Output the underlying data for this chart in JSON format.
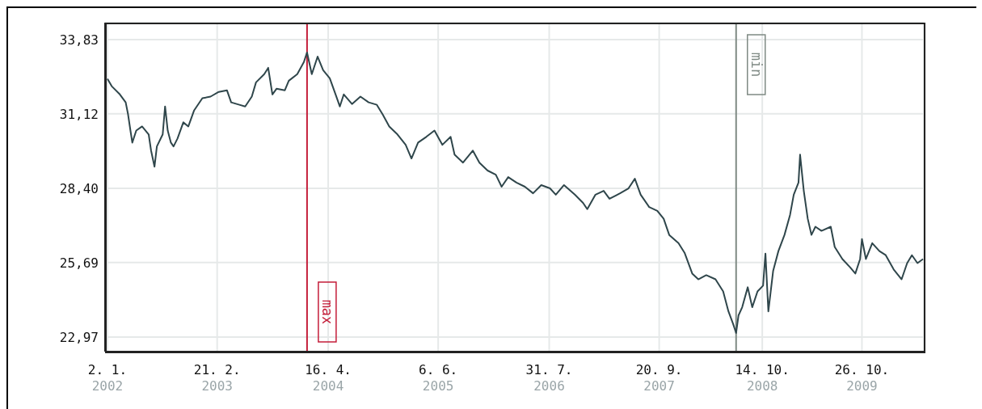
{
  "chart_data": {
    "type": "line",
    "grid": true,
    "marker": "none",
    "line_style": "solid",
    "xlim": [
      "2001-12-24",
      "2010-06-17"
    ],
    "xticks": [
      {
        "value": "2002-01-02",
        "label": "2. 1.\n2002"
      },
      {
        "value": "2003-02-21",
        "label": "21. 2.\n2003"
      },
      {
        "value": "2004-04-16",
        "label": "16. 4.\n2004"
      },
      {
        "value": "2005-06-06",
        "label": "6. 6.\n2005"
      },
      {
        "value": "2006-07-31",
        "label": "31. 7.\n2006"
      },
      {
        "value": "2007-09-20",
        "label": "20. 9.\n2007"
      },
      {
        "value": "2008-10-14",
        "label": "14. 10.\n2008"
      },
      {
        "value": "2009-10-26",
        "label": "26. 10.\n2009"
      }
    ],
    "ylim": [
      22.44,
      34.45
    ],
    "yticks": [
      {
        "value": 22.97,
        "label": "22,97"
      },
      {
        "value": 25.69,
        "label": "25,69"
      },
      {
        "value": 28.4,
        "label": "28,40"
      },
      {
        "value": 31.12,
        "label": "31,12"
      },
      {
        "value": 33.83,
        "label": "33,83"
      }
    ],
    "ref_lines": [
      {
        "axis": "x",
        "value": "2004-01-27",
        "label": "max",
        "color": "#c41e3a"
      },
      {
        "axis": "x",
        "value": "2008-07-07",
        "label": "min",
        "color": "#7f8a84"
      }
    ],
    "series": [
      {
        "color": "#2f464b",
        "x": [
          "2002-01-02",
          "2002-01-18",
          "2002-02-18",
          "2002-03-12",
          "2002-03-21",
          "2002-03-30",
          "2002-04-06",
          "2002-04-21",
          "2002-05-13",
          "2002-06-07",
          "2002-06-16",
          "2002-06-29",
          "2002-07-08",
          "2002-07-30",
          "2002-08-08",
          "2002-08-18",
          "2002-08-30",
          "2002-09-09",
          "2002-09-24",
          "2002-10-16",
          "2002-11-04",
          "2002-11-26",
          "2002-12-27",
          "2003-01-27",
          "2003-02-27",
          "2003-03-30",
          "2003-04-15",
          "2003-05-16",
          "2003-06-07",
          "2003-07-02",
          "2003-07-18",
          "2003-08-18",
          "2003-09-02",
          "2003-09-18",
          "2003-10-04",
          "2003-11-04",
          "2003-11-19",
          "2003-12-21",
          "2004-01-15",
          "2004-01-27",
          "2004-02-14",
          "2004-03-07",
          "2004-03-28",
          "2004-04-22",
          "2004-05-14",
          "2004-05-30",
          "2004-06-14",
          "2004-07-15",
          "2004-08-16",
          "2004-09-16",
          "2004-10-17",
          "2004-11-08",
          "2004-12-03",
          "2005-01-03",
          "2005-02-03",
          "2005-02-25",
          "2005-03-22",
          "2005-04-22",
          "2005-05-23",
          "2005-06-22",
          "2005-07-23",
          "2005-08-07",
          "2005-09-08",
          "2005-10-15",
          "2005-11-09",
          "2005-12-10",
          "2006-01-10",
          "2006-02-01",
          "2006-02-26",
          "2006-03-29",
          "2006-04-30",
          "2006-05-31",
          "2006-07-01",
          "2006-08-03",
          "2006-08-25",
          "2006-09-25",
          "2006-11-05",
          "2006-12-06",
          "2006-12-22",
          "2007-01-22",
          "2007-02-22",
          "2007-03-16",
          "2007-04-25",
          "2007-05-27",
          "2007-06-20",
          "2007-07-12",
          "2007-08-13",
          "2007-09-13",
          "2007-10-07",
          "2007-10-28",
          "2007-12-02",
          "2007-12-25",
          "2008-01-23",
          "2008-02-15",
          "2008-03-16",
          "2008-04-20",
          "2008-05-19",
          "2008-06-08",
          "2008-06-25",
          "2008-07-07",
          "2008-07-16",
          "2008-07-30",
          "2008-08-20",
          "2008-09-06",
          "2008-09-26",
          "2008-10-17",
          "2008-10-26",
          "2008-11-06",
          "2008-11-24",
          "2008-12-14",
          "2009-01-06",
          "2009-01-27",
          "2009-02-10",
          "2009-02-28",
          "2009-03-06",
          "2009-03-20",
          "2009-04-04",
          "2009-04-18",
          "2009-05-03",
          "2009-05-26",
          "2009-06-30",
          "2009-07-15",
          "2009-08-13",
          "2009-09-11",
          "2009-10-01",
          "2009-10-19",
          "2009-10-26",
          "2009-11-10",
          "2009-12-04",
          "2009-12-31",
          "2010-01-24",
          "2010-02-23",
          "2010-03-25",
          "2010-04-15",
          "2010-05-03",
          "2010-05-24",
          "2010-06-14"
        ],
        "values": [
          32.4,
          32.13,
          31.83,
          31.54,
          31.1,
          30.51,
          30.07,
          30.51,
          30.66,
          30.37,
          29.78,
          29.19,
          29.93,
          30.37,
          31.39,
          30.51,
          30.07,
          29.93,
          30.22,
          30.81,
          30.66,
          31.25,
          31.69,
          31.75,
          31.92,
          31.98,
          31.54,
          31.45,
          31.39,
          31.75,
          32.27,
          32.57,
          32.8,
          31.83,
          32.04,
          31.98,
          32.33,
          32.57,
          33.01,
          33.36,
          32.57,
          33.21,
          32.71,
          32.42,
          31.83,
          31.39,
          31.83,
          31.48,
          31.75,
          31.54,
          31.45,
          31.1,
          30.66,
          30.37,
          29.99,
          29.49,
          30.07,
          30.28,
          30.51,
          29.99,
          30.28,
          29.63,
          29.34,
          29.78,
          29.34,
          29.05,
          28.9,
          28.46,
          28.81,
          28.61,
          28.46,
          28.22,
          28.52,
          28.4,
          28.17,
          28.52,
          28.17,
          27.87,
          27.64,
          28.17,
          28.31,
          28.02,
          28.22,
          28.4,
          28.75,
          28.17,
          27.72,
          27.58,
          27.29,
          26.7,
          26.4,
          26.05,
          25.29,
          25.08,
          25.23,
          25.08,
          24.64,
          23.91,
          23.47,
          23.12,
          23.76,
          24.06,
          24.79,
          24.06,
          24.64,
          24.85,
          26.02,
          23.91,
          25.38,
          26.11,
          26.7,
          27.43,
          28.17,
          28.61,
          29.63,
          28.31,
          27.29,
          26.7,
          27.0,
          26.85,
          27.0,
          26.26,
          25.82,
          25.52,
          25.29,
          25.82,
          26.55,
          25.82,
          26.4,
          26.11,
          25.96,
          25.44,
          25.08,
          25.67,
          25.96,
          25.67,
          25.82
        ]
      }
    ]
  }
}
